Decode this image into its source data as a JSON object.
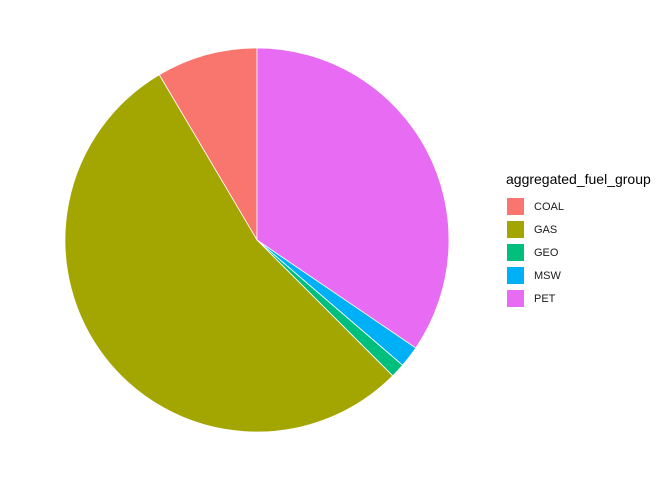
{
  "chart_data": {
    "type": "pie",
    "title": "",
    "legend": {
      "title": "aggregated_fuel_group",
      "placement": "right"
    },
    "slices": [
      {
        "label": "COAL",
        "value": 8.5,
        "color": "#F8766D"
      },
      {
        "label": "GAS",
        "value": 54.0,
        "color": "#A3A500"
      },
      {
        "label": "GEO",
        "value": 1.2,
        "color": "#00BF7D"
      },
      {
        "label": "MSW",
        "value": 1.8,
        "color": "#00B0F6"
      },
      {
        "label": "PET",
        "value": 34.5,
        "color": "#E76BF3"
      }
    ],
    "start": "12 o'clock",
    "direction": "counterclockwise",
    "slice_border_color": "#ffffff",
    "background": "#ffffff"
  }
}
